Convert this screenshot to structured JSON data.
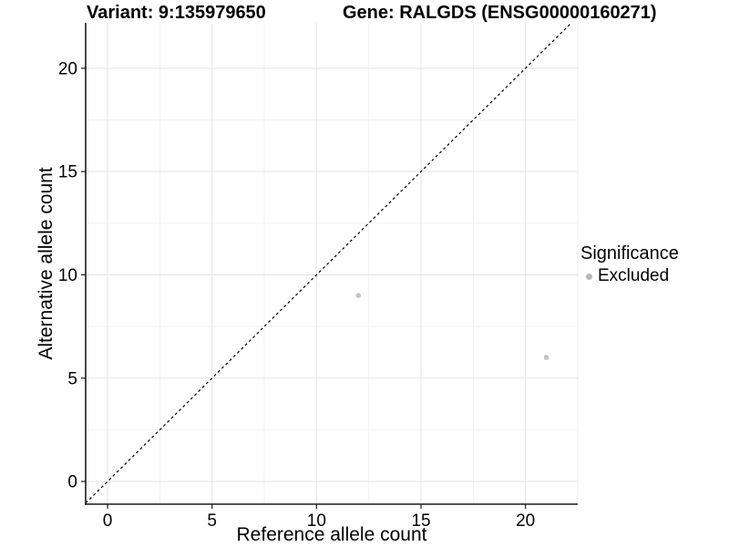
{
  "header": {
    "variant_title": "Variant: 9:135979650",
    "gene_title": "Gene: RALGDS (ENSG00000160271)"
  },
  "chart_data": {
    "type": "scatter",
    "xlabel": "Reference allele count",
    "ylabel": "Alternative allele count",
    "xlim": [
      -1.05,
      22.5
    ],
    "ylim": [
      -1.1,
      22.2
    ],
    "x_ticks": [
      0,
      5,
      10,
      15,
      20
    ],
    "y_ticks": [
      0,
      5,
      10,
      15,
      20
    ],
    "x_minor_ticks": [
      2.5,
      7.5,
      12.5,
      17.5,
      22.5
    ],
    "y_minor_ticks": [
      2.5,
      7.5,
      12.5,
      17.5
    ],
    "grid": "major+minor",
    "reference_line": {
      "kind": "identity",
      "intercept": 0,
      "slope": 1,
      "style": "dashed",
      "color": "#000000"
    },
    "series": [
      {
        "name": "Excluded",
        "color": "#c2c2c2",
        "points": [
          {
            "x": 12,
            "y": 9
          },
          {
            "x": 21,
            "y": 6
          }
        ]
      }
    ],
    "legend": {
      "title": "Significance",
      "position": "right",
      "items": [
        {
          "label": "Excluded",
          "color": "#b8b8b8",
          "marker": "circle"
        }
      ]
    }
  },
  "colors": {
    "background": "#ffffff",
    "axis": "#1a1a1a",
    "grid_major": "#e4e4e4",
    "grid_minor": "#f1f1f1",
    "text": "#000000"
  }
}
